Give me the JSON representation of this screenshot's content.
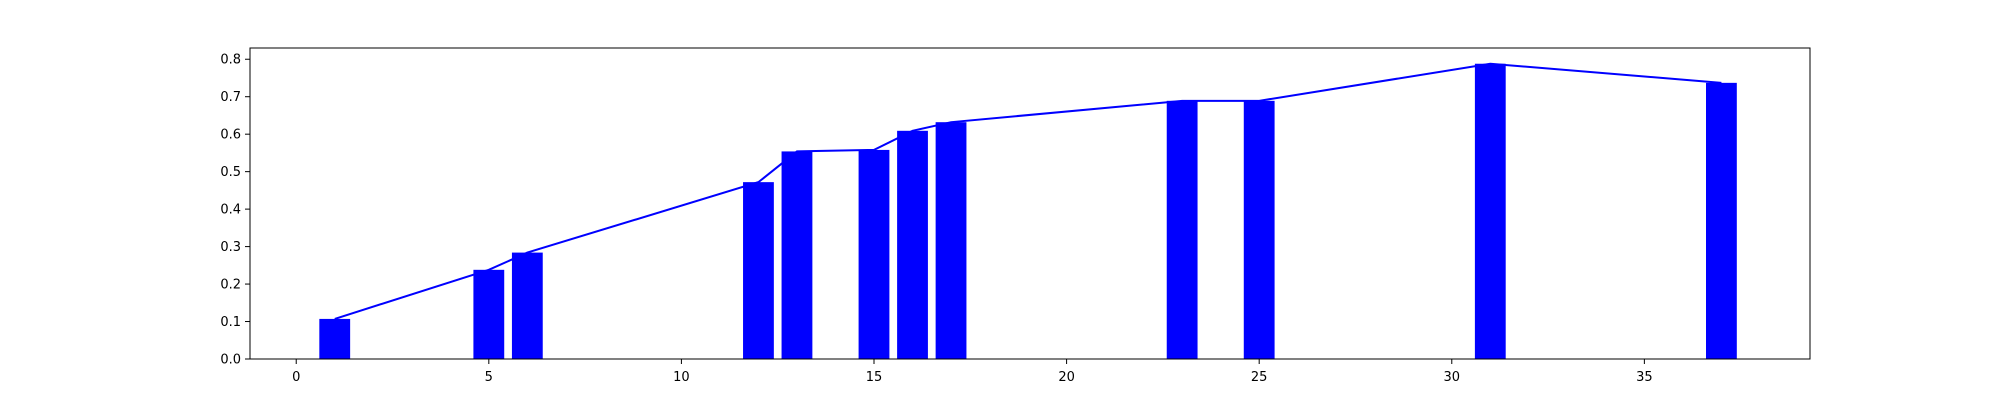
{
  "chart_data": {
    "type": "bar",
    "title": "",
    "xlabel": "",
    "ylabel": "",
    "xlim": [
      -1.2,
      39.3
    ],
    "ylim": [
      0,
      0.83
    ],
    "x_ticks": [
      0,
      5,
      10,
      15,
      20,
      25,
      30,
      35
    ],
    "y_ticks": [
      0.0,
      0.1,
      0.2,
      0.3,
      0.4,
      0.5,
      0.6,
      0.7,
      0.8
    ],
    "grid": false,
    "legend": "none",
    "bar_width": 0.8,
    "series": [
      {
        "type": "bar",
        "color": "#0000ff",
        "x": [
          1,
          5,
          6,
          12,
          13,
          15,
          16,
          17,
          23,
          25,
          31,
          37
        ],
        "values": [
          0.107,
          0.238,
          0.284,
          0.472,
          0.554,
          0.558,
          0.609,
          0.632,
          0.689,
          0.689,
          0.788,
          0.737
        ]
      },
      {
        "type": "line",
        "color": "#0000ff",
        "x": [
          1,
          5,
          6,
          12,
          13,
          15,
          16,
          17,
          23,
          25,
          31,
          37
        ],
        "values": [
          0.107,
          0.238,
          0.284,
          0.472,
          0.554,
          0.558,
          0.609,
          0.632,
          0.689,
          0.689,
          0.788,
          0.737
        ]
      }
    ]
  }
}
